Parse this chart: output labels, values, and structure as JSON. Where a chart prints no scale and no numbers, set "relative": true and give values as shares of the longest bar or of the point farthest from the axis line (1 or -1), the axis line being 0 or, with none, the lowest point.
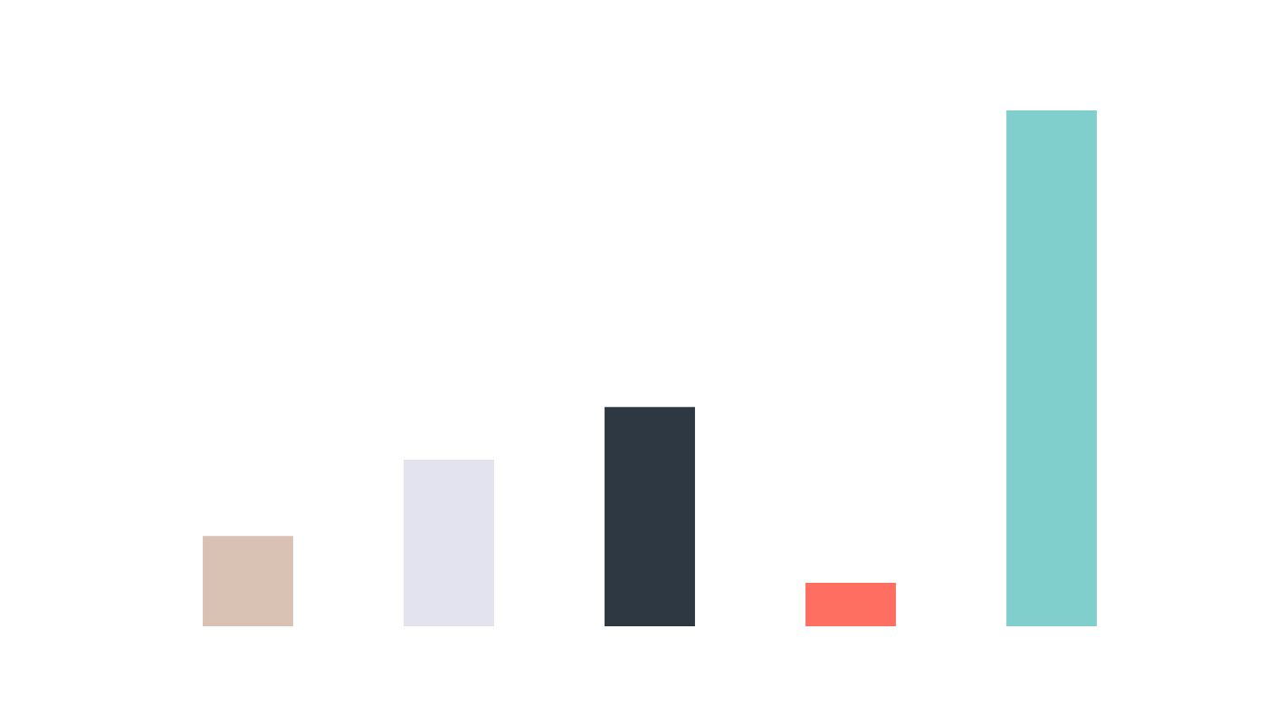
{
  "chart_data": {
    "type": "bar",
    "relative": true,
    "categories": [
      null,
      null,
      null,
      null,
      null
    ],
    "values": [
      0.175,
      0.323,
      0.425,
      0.084,
      1
    ],
    "colors": [
      "#d9c2b4",
      "#e3e2ef",
      "#2e3843",
      "#ff6f61",
      "#80cfcd"
    ],
    "grid": false,
    "legend": false
  }
}
